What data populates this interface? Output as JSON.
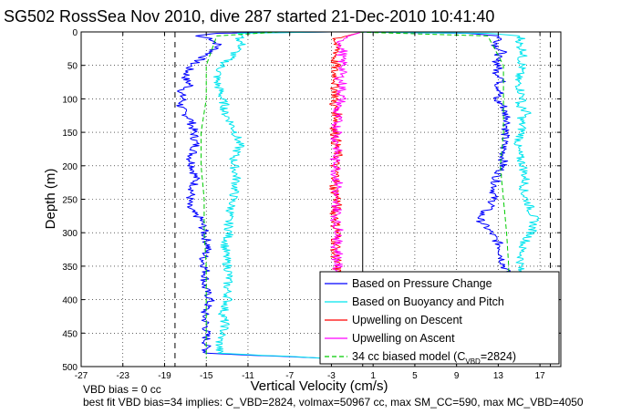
{
  "chart_data": {
    "type": "line",
    "title": "SG502 RossSea Nov 2010, dive 287 started 21-Dec-2010 10:41:40",
    "xlabel": "Vertical Velocity (cm/s)",
    "ylabel": "Depth (m)",
    "xlim": [
      -27,
      19
    ],
    "ylim": [
      500,
      0
    ],
    "y_reversed": true,
    "xticks": [
      -27,
      -23,
      -19,
      -15,
      -11,
      -7,
      -3,
      1,
      5,
      9,
      13,
      17
    ],
    "xtick_labels": [
      "-27",
      "-23",
      "-19",
      "-15",
      "-11",
      "-7",
      "-3",
      "1",
      "5",
      "9",
      "13",
      "17"
    ],
    "yticks": [
      0,
      50,
      100,
      150,
      200,
      250,
      300,
      350,
      400,
      450,
      500
    ],
    "ytick_labels": [
      "0",
      "50",
      "100",
      "150",
      "200",
      "250",
      "300",
      "350",
      "400",
      "450",
      "500"
    ],
    "grid": true,
    "legend_position": "bottom-right",
    "reference_lines": [
      {
        "x": -18,
        "style": "dashed",
        "color": "#000000"
      },
      {
        "x": 0,
        "style": "solid",
        "color": "#000000"
      },
      {
        "x": 18,
        "style": "dashed",
        "color": "#000000"
      }
    ],
    "series": [
      {
        "name": "Based on Pressure Change",
        "color": "#0000ff",
        "style": "solid",
        "depth": [
          0,
          2,
          6,
          10,
          20,
          30,
          40,
          50,
          60,
          70,
          80,
          90,
          100,
          110,
          120,
          130,
          150,
          170,
          190,
          200,
          220,
          240,
          260,
          270,
          280,
          300,
          320,
          340,
          360,
          380,
          400,
          420,
          440,
          460,
          480,
          488
        ],
        "descent": [
          -3,
          -14,
          -16,
          -14.5,
          -13.8,
          -14.5,
          -15.5,
          -16.5,
          -16.8,
          -17,
          -16.5,
          -17.5,
          -17.2,
          -17.5,
          -17.2,
          -16.5,
          -16.2,
          -16,
          -16.5,
          -16.3,
          -16,
          -16.4,
          -16.8,
          -16.3,
          -15.5,
          -15.2,
          -14.8,
          -15.3,
          -15,
          -15.2,
          -14.6,
          -15.2,
          -15,
          -15,
          -15,
          -3
        ],
        "ascent": [
          -1,
          10,
          13,
          13.2,
          12.8,
          13.4,
          12.7,
          13.1,
          12.8,
          13.5,
          13,
          13.3,
          12.6,
          13.5,
          13.6,
          14,
          13.7,
          13.5,
          13.5,
          13.4,
          12.8,
          12.6,
          12.4,
          11.5,
          11.2,
          12.3,
          13.2,
          13.4,
          13.8,
          14,
          14,
          14,
          14,
          14,
          14,
          14
        ]
      },
      {
        "name": "Based on Buoyancy and Pitch",
        "color": "#00e5ee",
        "style": "solid",
        "depth": [
          0,
          2,
          6,
          10,
          20,
          30,
          40,
          50,
          60,
          70,
          80,
          90,
          100,
          110,
          120,
          130,
          150,
          170,
          190,
          200,
          220,
          240,
          260,
          270,
          280,
          300,
          320,
          340,
          360,
          380,
          400,
          420,
          440,
          460,
          480,
          488
        ],
        "descent": [
          -3,
          -12,
          -11.5,
          -11.8,
          -11.6,
          -12.2,
          -12.8,
          -13.5,
          -13.8,
          -14,
          -13.9,
          -13.6,
          -13.5,
          -13.2,
          -13.3,
          -12.8,
          -12.2,
          -11.8,
          -12.4,
          -12.3,
          -12.1,
          -12.3,
          -12.6,
          -12.7,
          -12.9,
          -12.8,
          -13.2,
          -13.1,
          -12.8,
          -13,
          -12.9,
          -13.4,
          -13.2,
          -13.7,
          -13.8,
          -3
        ],
        "ascent": [
          -1,
          12,
          15,
          15.2,
          15,
          15.5,
          15.2,
          15.3,
          15.1,
          14.8,
          15,
          15.2,
          15.4,
          14.9,
          15.8,
          15.2,
          15.3,
          14.8,
          15.1,
          15.4,
          15.6,
          15.4,
          16,
          16.2,
          16.5,
          16.2,
          15.3,
          15.2,
          15,
          15,
          15,
          15,
          15,
          15,
          15,
          15
        ]
      },
      {
        "name": "Upwelling on Descent",
        "color": "#ff0000",
        "style": "solid",
        "depth": [
          0,
          10,
          20,
          30,
          40,
          50,
          60,
          70,
          80,
          90,
          100,
          110,
          120,
          130,
          140,
          150,
          160,
          170,
          180,
          190,
          200,
          210,
          220,
          230,
          240,
          250,
          260,
          270,
          280,
          290,
          300,
          310,
          320,
          330,
          340,
          350,
          360,
          370
        ],
        "values": [
          0,
          -2.5,
          -2.6,
          -2.4,
          -2.7,
          -2.6,
          -2.8,
          -2.4,
          -2.7,
          -2.5,
          -2.6,
          -2.8,
          -2.5,
          -2.4,
          -2.6,
          -2.7,
          -2.5,
          -2.6,
          -2.4,
          -2.5,
          -2.7,
          -2.6,
          -2.5,
          -2.8,
          -2.6,
          -2.4,
          -2.5,
          -2.7,
          -2.5,
          -2.6,
          -2.4,
          -2.6,
          -2.5,
          -2.7,
          -2.5,
          -2.6,
          -2.4,
          -2.5
        ]
      },
      {
        "name": "Upwelling on Ascent",
        "color": "#ff00ff",
        "style": "solid",
        "depth": [
          0,
          10,
          20,
          30,
          40,
          50,
          60,
          70,
          80,
          90,
          100,
          110,
          120,
          130,
          140,
          150,
          160,
          170,
          180,
          190,
          200,
          210,
          220,
          230,
          240,
          250,
          260,
          270,
          280,
          290,
          300,
          310,
          320,
          330,
          340,
          350,
          360,
          370
        ],
        "values": [
          0,
          -2.2,
          -2.0,
          -1.9,
          -2.1,
          -1.8,
          -2.0,
          -2.2,
          -1.9,
          -2.1,
          -2.0,
          -2.3,
          -2.6,
          -2.4,
          -2.5,
          -2.3,
          -2.6,
          -2.4,
          -2.5,
          -2.7,
          -2.4,
          -2.6,
          -2.5,
          -2.3,
          -2.6,
          -2.8,
          -2.5,
          -2.4,
          -2.6,
          -2.5,
          -2.2,
          -2.4,
          -2.6,
          -2.3,
          -2.5,
          -2.4,
          -2.6,
          -2.5
        ]
      },
      {
        "name": "34 cc biased model (C<sub>VBD</sub>=2824)",
        "legend_main": "34 cc biased model (C",
        "legend_sub": "VBD",
        "legend_tail": "=2824)",
        "color": "#00cc00",
        "style": "dashed",
        "depth": [
          0,
          6,
          50,
          100,
          150,
          200,
          250,
          300,
          350,
          400,
          450,
          488
        ],
        "descent": [
          -8,
          -14,
          -15,
          -15,
          -15.5,
          -15.5,
          -15.2,
          -15.2,
          -15,
          -15,
          -15,
          -15
        ],
        "ascent": [
          -1,
          12,
          13.5,
          13.5,
          13.5,
          13.2,
          13.5,
          13.8,
          14,
          14,
          14,
          14
        ]
      }
    ]
  },
  "notes": {
    "line1": "VBD bias = 0 cc",
    "line2": "best fit VBD bias=34 implies: C_VBD=2824, volmax=50967 cc, max SM_CC=590, max MC_VBD=4050"
  }
}
